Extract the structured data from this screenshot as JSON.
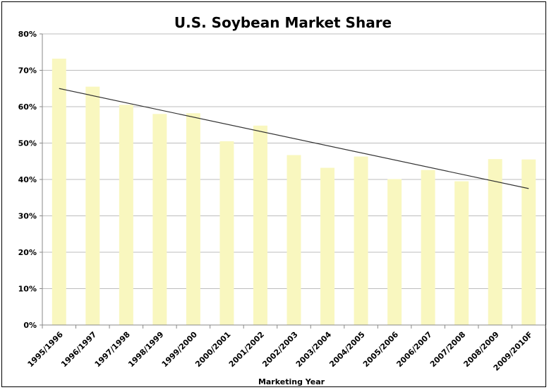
{
  "chart_data": {
    "type": "bar",
    "title": "U.S. Soybean Market Share",
    "xlabel": "Marketing Year",
    "ylabel": "",
    "ylim": [
      0,
      80
    ],
    "yticks": [
      "0%",
      "10%",
      "20%",
      "30%",
      "40%",
      "50%",
      "60%",
      "70%",
      "80%"
    ],
    "grid": true,
    "categories": [
      "1995/1996",
      "1996/1997",
      "1997/1998",
      "1998/1999",
      "1999/2000",
      "2000/2001",
      "2001/2002",
      "2002/2003",
      "2003/2004",
      "2004/2005",
      "2005/2006",
      "2006/2007",
      "2007/2008",
      "2008/2009",
      "2009/2010F"
    ],
    "values": [
      73.2,
      65.5,
      60.5,
      58.0,
      58.2,
      50.5,
      54.8,
      46.7,
      43.2,
      46.3,
      40.1,
      42.6,
      39.5,
      45.6,
      45.5
    ],
    "trendline": {
      "start": 65.0,
      "end": 37.5
    },
    "colors": {
      "bar": "#f9f7bf",
      "trend": "#333333",
      "grid": "#bdbdbd"
    }
  }
}
